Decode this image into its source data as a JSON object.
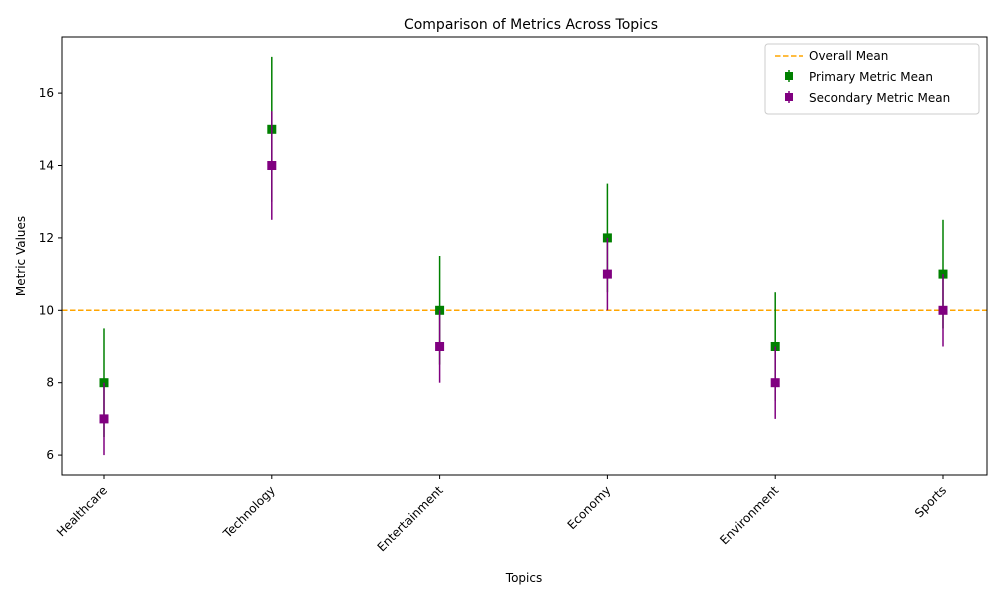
{
  "chart_data": {
    "type": "scatter",
    "title": "Comparison of Metrics Across Topics",
    "xlabel": "Topics",
    "ylabel": "Metric Values",
    "categories": [
      "Healthcare",
      "Technology",
      "Entertainment",
      "Economy",
      "Environment",
      "Sports"
    ],
    "ylim": [
      5.45,
      17.55
    ],
    "yticks": [
      6,
      8,
      10,
      12,
      14,
      16
    ],
    "series": [
      {
        "name": "Primary Metric Mean",
        "color": "#008000",
        "marker": "square",
        "values": [
          8,
          15,
          10,
          12,
          9,
          11
        ],
        "errors": [
          1.5,
          2.0,
          1.5,
          1.5,
          1.5,
          1.5
        ]
      },
      {
        "name": "Secondary Metric Mean",
        "color": "#800080",
        "marker": "square",
        "values": [
          7,
          14,
          9,
          11,
          8,
          10
        ],
        "errors": [
          1.0,
          1.5,
          1.0,
          1.0,
          1.0,
          1.0
        ]
      }
    ],
    "reference_line": {
      "name": "Overall Mean",
      "value": 10,
      "color": "#ffa500",
      "style": "dashed"
    },
    "legend": [
      "Overall Mean",
      "Primary Metric Mean",
      "Secondary Metric Mean"
    ],
    "legend_position": "top-right",
    "grid": false
  }
}
